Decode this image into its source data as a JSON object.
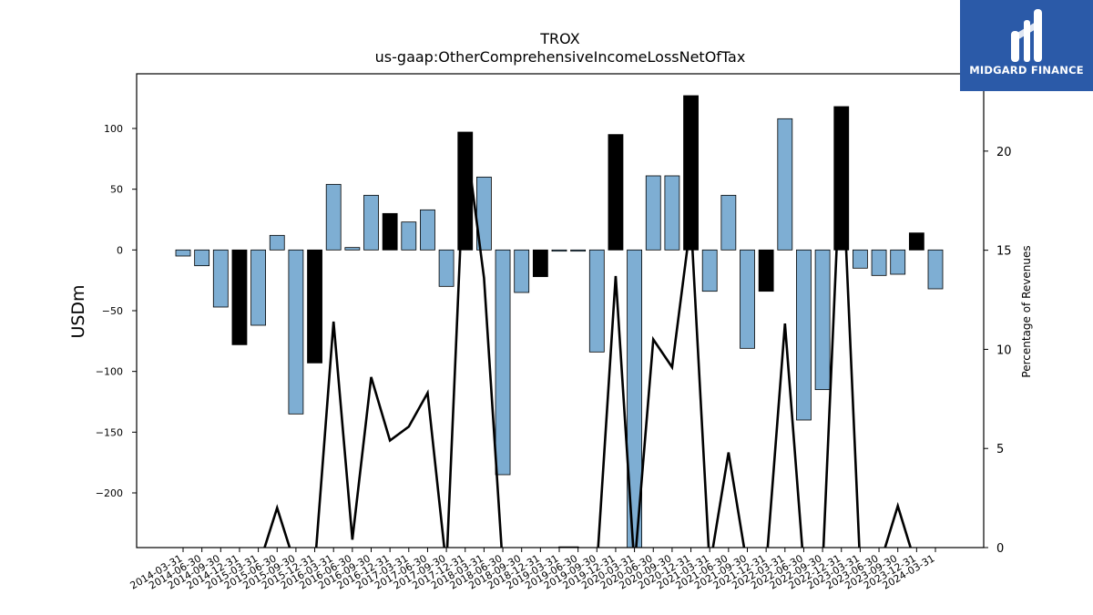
{
  "chart_data": {
    "type": "bar",
    "title": "TROX",
    "subtitle": "us-gaap:OtherComprehensiveIncomeLossNetOfTax",
    "ylabel": "USDm",
    "y2label": "Percentage of Revenues",
    "ylim": [
      -245,
      145
    ],
    "y2lim": [
      0,
      23.9
    ],
    "yticks": [
      -200,
      -150,
      -100,
      -50,
      0,
      50,
      100
    ],
    "y2ticks": [
      0,
      5,
      10,
      15,
      20
    ],
    "categories": [
      "2014-03-31",
      "2014-06-30",
      "2014-09-30",
      "2014-12-31",
      "2015-03-31",
      "2015-06-30",
      "2015-09-30",
      "2015-12-31",
      "2016-03-31",
      "2016-06-30",
      "2016-09-30",
      "2016-12-31",
      "2017-03-31",
      "2017-06-30",
      "2017-09-30",
      "2017-12-31",
      "2018-03-31",
      "2018-06-30",
      "2018-09-30",
      "2018-12-31",
      "2019-03-31",
      "2019-06-30",
      "2019-09-30",
      "2019-12-31",
      "2020-03-31",
      "2020-06-30",
      "2020-09-30",
      "2020-12-31",
      "2021-03-31",
      "2021-06-30",
      "2021-09-30",
      "2021-12-31",
      "2022-03-31",
      "2022-06-30",
      "2022-09-30",
      "2022-12-31",
      "2023-03-31",
      "2023-06-30",
      "2023-09-30",
      "2023-12-31",
      "2024-03-31"
    ],
    "series": [
      {
        "type": "bar",
        "values": [
          -5,
          -13,
          -47,
          -78,
          -62,
          12,
          -135,
          -93,
          54,
          2,
          45,
          30,
          23,
          33,
          -30,
          97,
          60,
          -185,
          -35,
          -22,
          -1,
          -1,
          -84,
          95,
          -247,
          61,
          61,
          127,
          -34,
          45,
          -81,
          -34,
          108,
          -140,
          -115,
          118,
          -15,
          -21,
          -20,
          14,
          -32
        ],
        "colors": [
          "blue",
          "blue",
          "blue",
          "black",
          "blue",
          "blue",
          "blue",
          "black",
          "blue",
          "blue",
          "blue",
          "black",
          "blue",
          "blue",
          "blue",
          "black",
          "blue",
          "blue",
          "blue",
          "black",
          "blue",
          "blue",
          "blue",
          "black",
          "blue",
          "blue",
          "blue",
          "black",
          "blue",
          "blue",
          "blue",
          "black",
          "blue",
          "blue",
          "blue",
          "black",
          "blue",
          "blue",
          "blue",
          "black",
          "blue"
        ]
      },
      {
        "type": "line",
        "values": [
          -1,
          -1,
          -1,
          -1,
          -1,
          2,
          -1,
          -1,
          11.4,
          0.4,
          8.6,
          5.4,
          6.1,
          7.8,
          -1,
          20.9,
          13.6,
          -1,
          -1,
          -1,
          0,
          0,
          -1,
          13.7,
          -1,
          10.5,
          9.1,
          16.5,
          -1,
          4.8,
          -1,
          -1,
          11.3,
          -1,
          -1,
          20.5,
          -1,
          -1,
          2.1,
          -1,
          -1
        ]
      }
    ],
    "colors": {
      "blue": "#7eaed3",
      "black": "#000000",
      "line": "#000000"
    }
  },
  "brand": {
    "name": "MIDGARD FINANCE",
    "background": "#2b5aa8"
  }
}
